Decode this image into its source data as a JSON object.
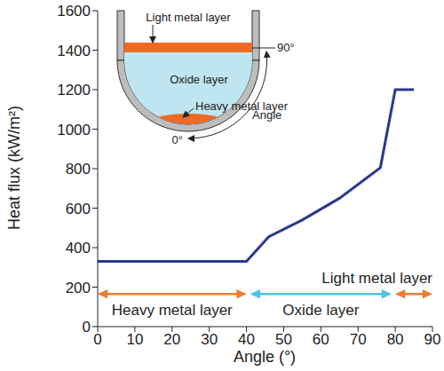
{
  "chart_data": {
    "type": "line",
    "x_label": "Angle (°)",
    "y_label": "Heat flux (kW/m²)",
    "x": [
      0,
      40,
      46,
      55,
      65,
      76,
      80,
      85
    ],
    "values": [
      330,
      330,
      455,
      540,
      650,
      805,
      1200,
      1200
    ],
    "color": "#2b3990",
    "xlim": [
      0,
      90
    ],
    "xticks": [
      0,
      10,
      20,
      30,
      40,
      50,
      60,
      70,
      80,
      90
    ],
    "ylim": [
      0,
      1600
    ],
    "yticks": [
      0,
      200,
      400,
      600,
      800,
      1000,
      1200,
      1400,
      1600
    ],
    "grid": false,
    "annotations": [
      {
        "text": "Heavy metal layer",
        "x": [
          0,
          40
        ],
        "y": 165,
        "color": "#ed7d31"
      },
      {
        "text": "Oxide layer",
        "x": [
          41,
          79
        ],
        "y": 165,
        "color": "#4dc3e6"
      },
      {
        "text": "Light metal layer",
        "x": [
          80,
          90
        ],
        "y": 165,
        "color": "#ed7d31"
      }
    ],
    "inset": {
      "light_metal": "Light metal layer",
      "oxide": "Oxide layer",
      "heavy_metal": "Heavy metal layer",
      "angle": "Angle",
      "angle_top": "90°",
      "angle_bottom": "0°"
    }
  }
}
